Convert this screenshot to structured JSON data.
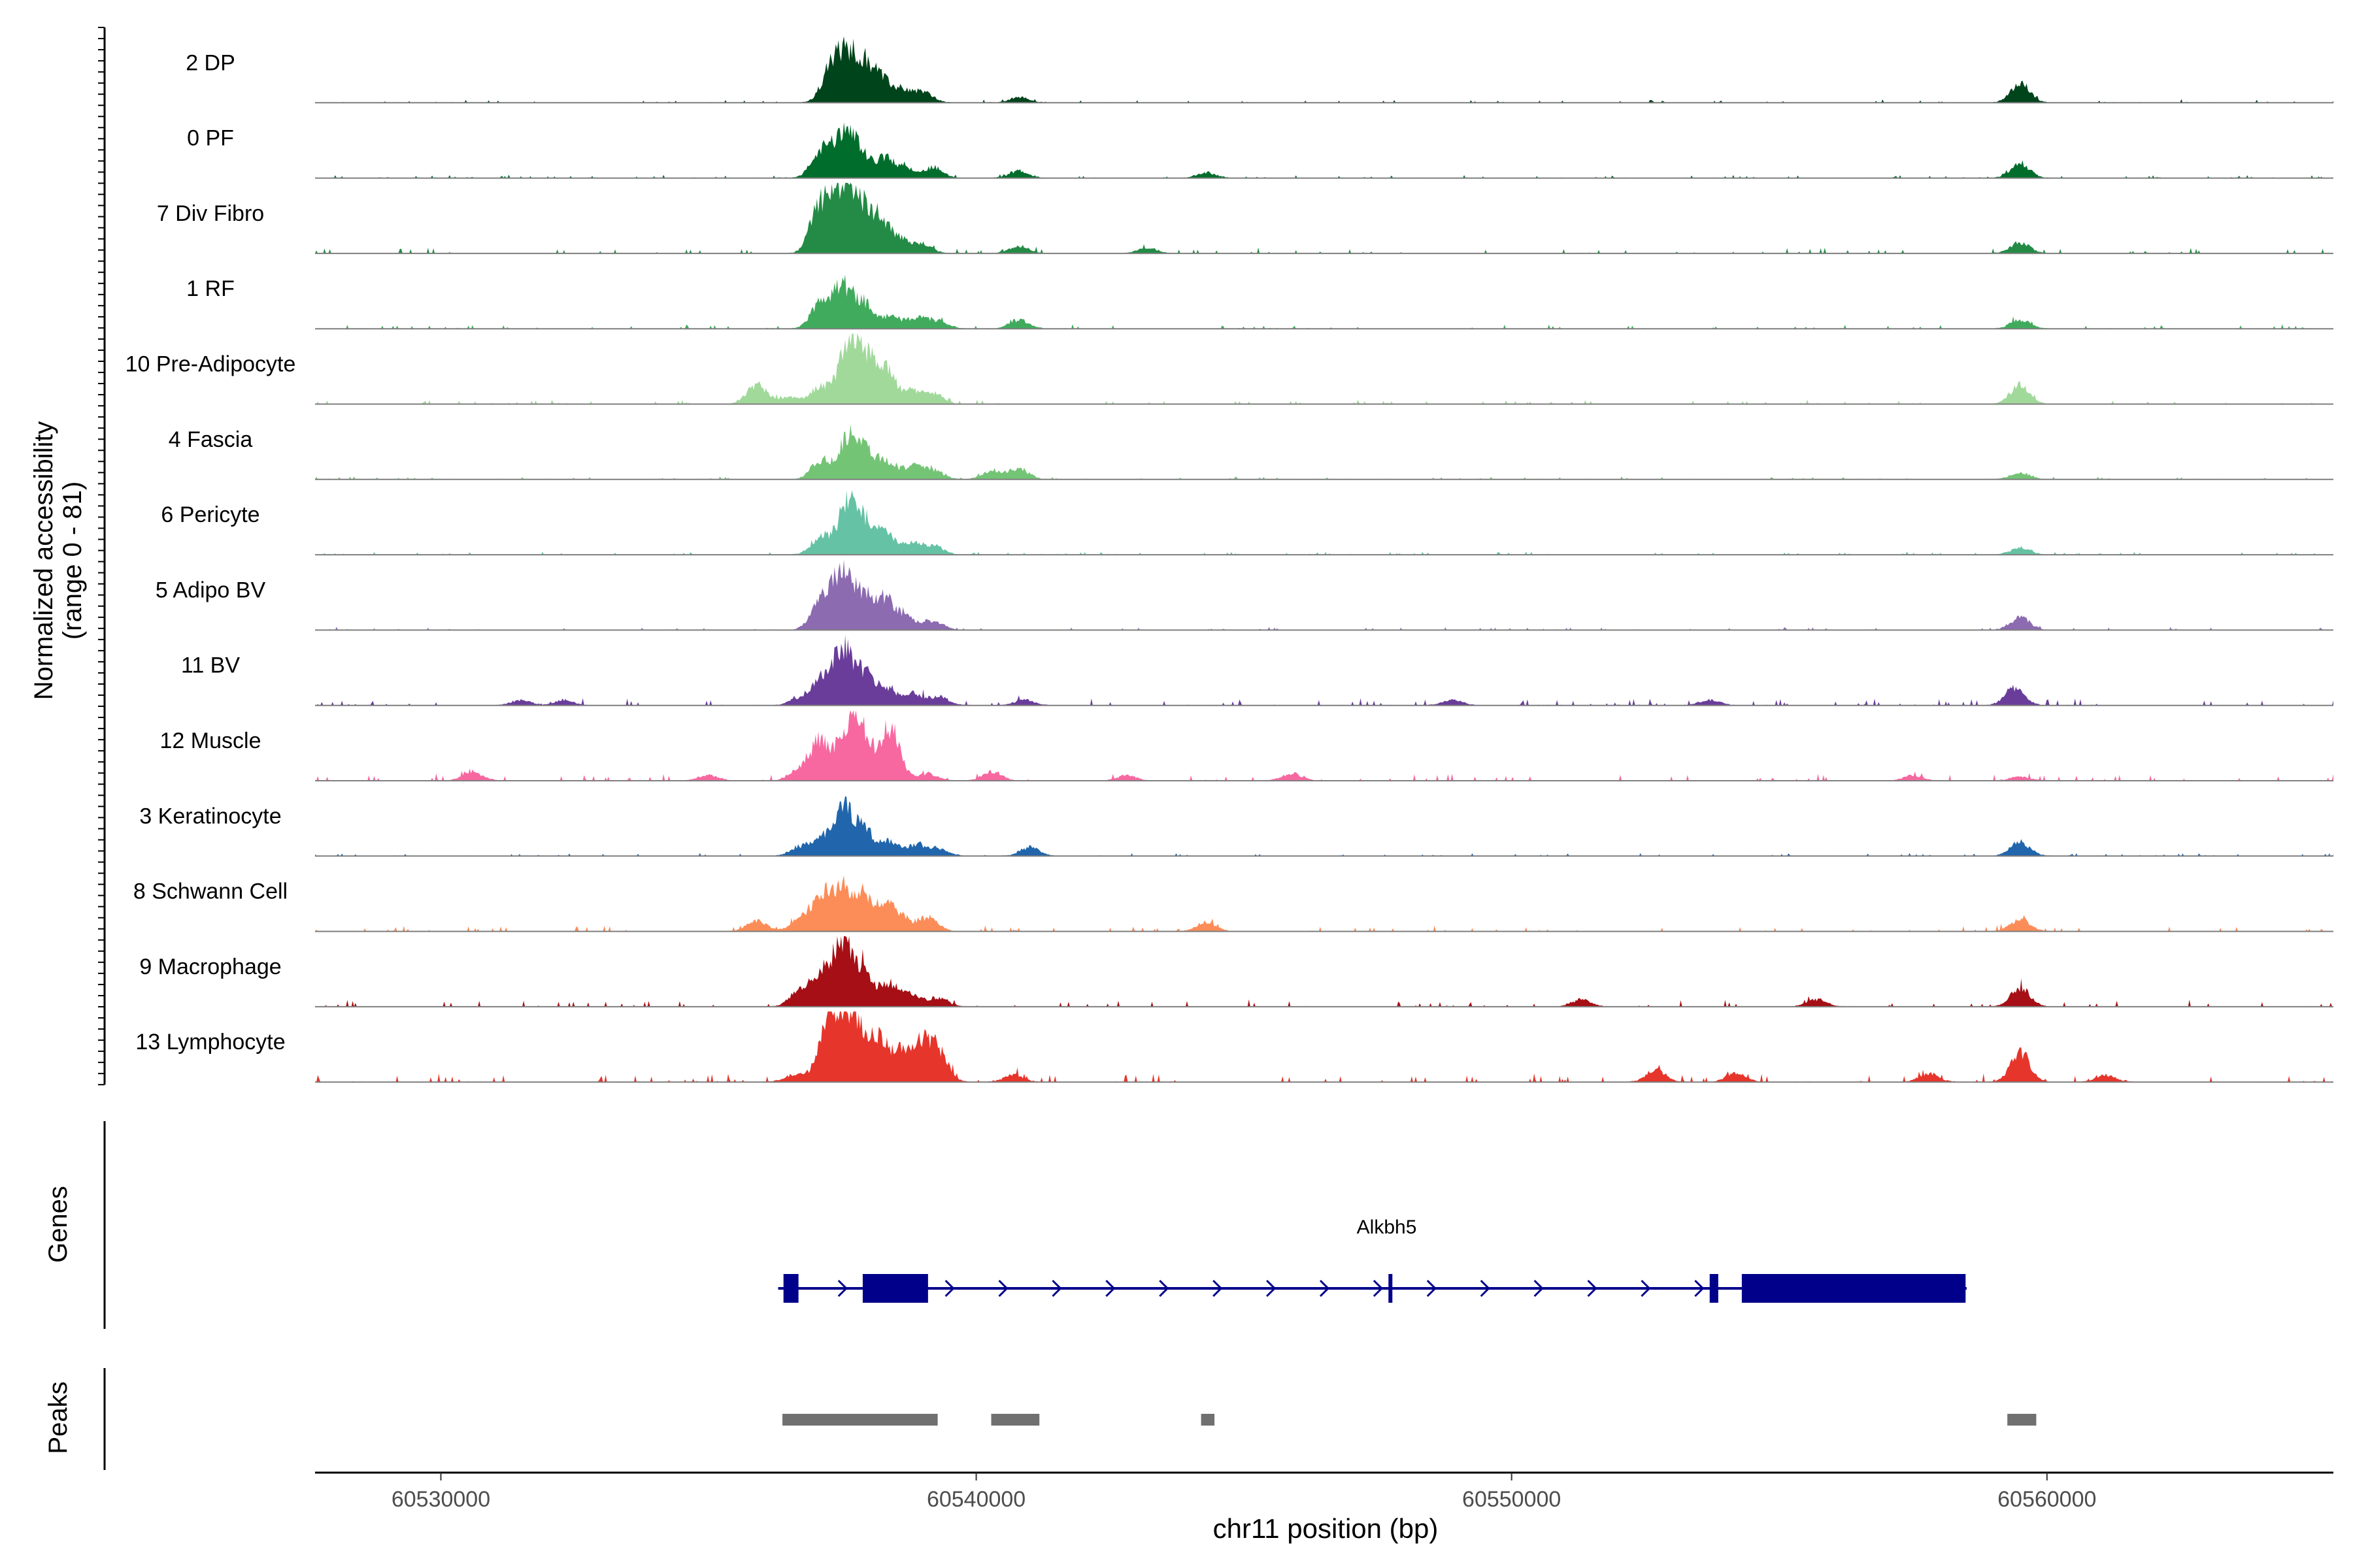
{
  "chart_data": {
    "type": "area",
    "title": "",
    "ylabel_line1": "Normalized accessibility",
    "ylabel_line2": "(range 0 - 81)",
    "xlabel": "chr11 position (bp)",
    "y_range": [
      0,
      81
    ],
    "x_range": [
      60527650,
      60565350
    ],
    "x_ticks": [
      60530000,
      60540000,
      60550000,
      60560000
    ],
    "x_tick_labels": [
      "60530000",
      "60540000",
      "60550000",
      "60560000"
    ],
    "tracks": [
      {
        "name": "2 DP",
        "color": "#00441b",
        "peaks": [
          [
            60537300,
            38
          ],
          [
            60537600,
            44
          ],
          [
            60537900,
            36
          ],
          [
            60538200,
            24
          ],
          [
            60538600,
            14
          ],
          [
            60539000,
            12
          ],
          [
            60540800,
            6
          ],
          [
            60559500,
            22
          ]
        ],
        "noise": 2
      },
      {
        "name": "0 PF",
        "color": "#006d2c",
        "peaks": [
          [
            60537100,
            30
          ],
          [
            60537500,
            42
          ],
          [
            60537800,
            30
          ],
          [
            60538300,
            22
          ],
          [
            60538700,
            10
          ],
          [
            60539200,
            12
          ],
          [
            60540800,
            8
          ],
          [
            60544300,
            6
          ],
          [
            60559500,
            16
          ]
        ],
        "noise": 2
      },
      {
        "name": "7 Div Fibro",
        "color": "#238b45",
        "peaks": [
          [
            60537100,
            56
          ],
          [
            60537500,
            64
          ],
          [
            60537800,
            52
          ],
          [
            60538200,
            38
          ],
          [
            60538600,
            14
          ],
          [
            60539000,
            10
          ],
          [
            60540800,
            8
          ],
          [
            60543200,
            6
          ],
          [
            60559500,
            12
          ]
        ],
        "noise": 4
      },
      {
        "name": "1 RF",
        "color": "#41ab5d",
        "peaks": [
          [
            60537100,
            30
          ],
          [
            60537500,
            46
          ],
          [
            60537900,
            28
          ],
          [
            60538400,
            14
          ],
          [
            60538900,
            12
          ],
          [
            60539300,
            8
          ],
          [
            60540800,
            10
          ],
          [
            60559500,
            10
          ]
        ],
        "noise": 3
      },
      {
        "name": "10 Pre-Adipocyte",
        "color": "#a1d99b",
        "peaks": [
          [
            60535900,
            22
          ],
          [
            60536500,
            8
          ],
          [
            60537100,
            20
          ],
          [
            60537600,
            60
          ],
          [
            60537900,
            50
          ],
          [
            60538300,
            40
          ],
          [
            60538800,
            14
          ],
          [
            60539200,
            12
          ],
          [
            60559500,
            22
          ]
        ],
        "noise": 3
      },
      {
        "name": "4 Fascia",
        "color": "#74c476",
        "peaks": [
          [
            60537100,
            22
          ],
          [
            60537600,
            42
          ],
          [
            60537900,
            30
          ],
          [
            60538300,
            20
          ],
          [
            60538800,
            14
          ],
          [
            60539200,
            10
          ],
          [
            60540300,
            10
          ],
          [
            60540800,
            12
          ],
          [
            60559500,
            8
          ]
        ],
        "noise": 2
      },
      {
        "name": "6 Pericyte",
        "color": "#66c2a4",
        "peaks": [
          [
            60537100,
            20
          ],
          [
            60537600,
            56
          ],
          [
            60537900,
            30
          ],
          [
            60538300,
            24
          ],
          [
            60538800,
            12
          ],
          [
            60539200,
            10
          ],
          [
            60559500,
            8
          ]
        ],
        "noise": 2
      },
      {
        "name": "5 Adipo BV",
        "color": "#8c6bb1",
        "peaks": [
          [
            60537100,
            34
          ],
          [
            60537500,
            64
          ],
          [
            60537900,
            36
          ],
          [
            60538300,
            34
          ],
          [
            60538700,
            14
          ],
          [
            60539200,
            10
          ],
          [
            60559500,
            14
          ]
        ],
        "noise": 2
      },
      {
        "name": "11 BV",
        "color": "#6a3d9a",
        "peaks": [
          [
            60531500,
            6
          ],
          [
            60532300,
            6
          ],
          [
            60536700,
            8
          ],
          [
            60537100,
            28
          ],
          [
            60537500,
            64
          ],
          [
            60537900,
            34
          ],
          [
            60538300,
            20
          ],
          [
            60538800,
            14
          ],
          [
            60539300,
            10
          ],
          [
            60540900,
            6
          ],
          [
            60548900,
            6
          ],
          [
            60553700,
            6
          ],
          [
            60559400,
            20
          ]
        ],
        "noise": 5
      },
      {
        "name": "12 Muscle",
        "color": "#f768a1",
        "peaks": [
          [
            60530600,
            10
          ],
          [
            60535000,
            6
          ],
          [
            60536700,
            14
          ],
          [
            60537100,
            46
          ],
          [
            60537600,
            60
          ],
          [
            60537900,
            44
          ],
          [
            60538400,
            60
          ],
          [
            60539100,
            8
          ],
          [
            60540300,
            10
          ],
          [
            60542800,
            6
          ],
          [
            60545900,
            8
          ],
          [
            60557500,
            6
          ],
          [
            60559500,
            4
          ]
        ],
        "noise": 5
      },
      {
        "name": "3 Keratinocyte",
        "color": "#2166ac",
        "peaks": [
          [
            60536700,
            10
          ],
          [
            60537100,
            18
          ],
          [
            60537500,
            52
          ],
          [
            60537900,
            30
          ],
          [
            60538400,
            16
          ],
          [
            60538900,
            12
          ],
          [
            60539300,
            8
          ],
          [
            60541000,
            10
          ],
          [
            60559500,
            16
          ]
        ],
        "noise": 2
      },
      {
        "name": "8 Schwann Cell",
        "color": "#fc8d59",
        "peaks": [
          [
            60535900,
            12
          ],
          [
            60536700,
            14
          ],
          [
            60537100,
            38
          ],
          [
            60537500,
            50
          ],
          [
            60537900,
            34
          ],
          [
            60538300,
            24
          ],
          [
            60538600,
            14
          ],
          [
            60539100,
            16
          ],
          [
            60544300,
            10
          ],
          [
            60559500,
            14
          ]
        ],
        "noise": 4
      },
      {
        "name": "9 Macrophage",
        "color": "#a50f15",
        "peaks": [
          [
            60536700,
            18
          ],
          [
            60537100,
            34
          ],
          [
            60537500,
            70
          ],
          [
            60537900,
            40
          ],
          [
            60538400,
            24
          ],
          [
            60538800,
            12
          ],
          [
            60539300,
            10
          ],
          [
            60551300,
            8
          ],
          [
            60555700,
            8
          ],
          [
            60559500,
            22
          ]
        ],
        "noise": 5
      },
      {
        "name": "13 Lymphocyte",
        "color": "#e6352b",
        "peaks": [
          [
            60536600,
            8
          ],
          [
            60537200,
            56
          ],
          [
            60537500,
            66
          ],
          [
            60537800,
            52
          ],
          [
            60538200,
            44
          ],
          [
            60538600,
            30
          ],
          [
            60539000,
            40
          ],
          [
            60539300,
            30
          ],
          [
            60540700,
            8
          ],
          [
            60552700,
            14
          ],
          [
            60554200,
            10
          ],
          [
            60557800,
            10
          ],
          [
            60559500,
            34
          ],
          [
            60561100,
            8
          ]
        ],
        "noise": 6
      }
    ],
    "genes": [
      {
        "name": "Alkbh5",
        "color": "#00008b",
        "strand": "+",
        "start": 60536300,
        "end": 60558500,
        "exons": [
          [
            60536400,
            60536680
          ],
          [
            60537880,
            60539100
          ],
          [
            60547700,
            60547760
          ],
          [
            60553700,
            60553860
          ],
          [
            60554300,
            60558480
          ]
        ]
      }
    ],
    "peaks_track": {
      "color": "#707070",
      "regions": [
        [
          60536380,
          60539280
        ],
        [
          60540280,
          60541180
        ],
        [
          60544200,
          60544450
        ],
        [
          60559260,
          60559800
        ]
      ]
    },
    "panel_labels": {
      "genes": "Genes",
      "peaks": "Peaks"
    }
  }
}
